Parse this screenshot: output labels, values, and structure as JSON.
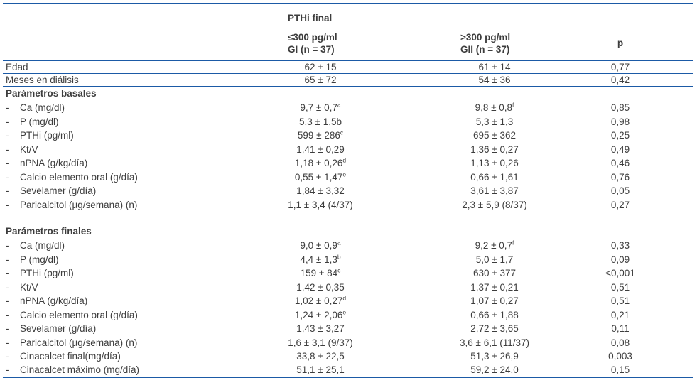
{
  "colors": {
    "rule_blue": "#1b5aa6",
    "text": "#3d3d3d"
  },
  "table": {
    "top_header": "PTHi final",
    "columns": {
      "group1": {
        "line1": "≤300 pg/ml",
        "line2": "GI (n = 37)"
      },
      "group2": {
        "line1": ">300 pg/ml",
        "line2": "GII (n = 37)"
      },
      "p_label": "p"
    },
    "rows": [
      {
        "label": "Edad",
        "top": true,
        "border": "thin",
        "gi": "62 ± 15",
        "gii": "61 ± 14",
        "p": "0,77"
      },
      {
        "label": "Meses en diálisis",
        "top": true,
        "border": "thin",
        "gi": "65 ± 72",
        "gii": "54 ± 36",
        "p": "0,42"
      },
      {
        "label": "Parámetros basales",
        "section": true
      },
      {
        "label": "Ca (mg/dl)",
        "dash": true,
        "gi": "9,7 ± 0,7",
        "gi_sup": "a",
        "gii": "9,8 ± 0,8",
        "gii_sup": "f",
        "p": "0,85"
      },
      {
        "label": "P (mg/dl)",
        "dash": true,
        "gi": "5,3 ± 1,5b",
        "gii": "5,3 ± 1,3",
        "p": "0,98"
      },
      {
        "label": "PTHi (pg/ml)",
        "dash": true,
        "gi": "599 ± 286",
        "gi_sup": "c",
        "gii": "695 ± 362",
        "p": "0,25"
      },
      {
        "label": "Kt/V",
        "dash": true,
        "gi": "1,41 ± 0,29",
        "gii": "1,36 ± 0,27",
        "p": "0,49"
      },
      {
        "label": "nPNA (g/kg/día)",
        "dash": true,
        "gi": "1,18 ± 0,26",
        "gi_sup": "d",
        "gii": "1,13 ± 0,26",
        "p": "0,46"
      },
      {
        "label": "Calcio elemento oral (g/día)",
        "dash": true,
        "gi": "0,55 ± 1,47",
        "gi_sup": "e",
        "gii": "0,66 ± 1,61",
        "p": "0,76"
      },
      {
        "label": "Sevelamer (g/día)",
        "dash": true,
        "gi": "1,84 ± 3,32",
        "gii": "3,61 ± 3,87",
        "p": "0,05"
      },
      {
        "label": "Paricalcitol (µg/semana) (n)",
        "dash": true,
        "border": "thin",
        "gi": "1,1 ± 3,4 (4/37)",
        "gii": "2,3 ± 5,9 (8/37)",
        "p": "0,27"
      },
      {
        "spacer": true
      },
      {
        "label": "Parámetros finales",
        "section": true
      },
      {
        "label": "Ca (mg/dl)",
        "dash": true,
        "gi": "9,0 ± 0,9",
        "gi_sup": "a",
        "gii": "9,2 ± 0,7",
        "gii_sup": "f",
        "p": "0,33"
      },
      {
        "label": "P (mg/dl)",
        "dash": true,
        "gi": "4,4 ± 1,3",
        "gi_sup": "b",
        "gii": "5,0 ± 1,7",
        "p": "0,09"
      },
      {
        "label": "PTHi (pg/ml)",
        "dash": true,
        "gi": "159 ± 84",
        "gi_sup": "c",
        "gii": "630 ± 377",
        "p": "<0,001"
      },
      {
        "label": "Kt/V",
        "dash": true,
        "gi": "1,42 ± 0,35",
        "gii": "1,37 ± 0,21",
        "p": "0,51"
      },
      {
        "label": "nPNA (g/kg/día)",
        "dash": true,
        "gi": "1,02 ± 0,27",
        "gi_sup": "d",
        "gii": "1,07 ± 0,27",
        "p": "0,51"
      },
      {
        "label": "Calcio elemento oral (g/día)",
        "dash": true,
        "gi": "1,24 ± 2,06",
        "gi_sup": "e",
        "gii": "0,66 ± 1,88",
        "p": "0,21"
      },
      {
        "label": "Sevelamer (g/día)",
        "dash": true,
        "gi": "1,43 ± 3,27",
        "gii": "2,72 ± 3,65",
        "p": "0,11"
      },
      {
        "label": "Paricalcitol (µg/semana) (n)",
        "dash": true,
        "gi": "1,6 ± 3,1 (9/37)",
        "gii": "3,6 ± 6,1 (11/37)",
        "p": "0,08"
      },
      {
        "label": "Cinacalcet final(mg/día)",
        "dash": true,
        "gi": "33,8 ± 22,5",
        "gii": "51,3 ± 26,9",
        "p": "0,003"
      },
      {
        "label": "Cinacalcet máximo (mg/día)",
        "dash": true,
        "border": "thick",
        "gi": "51,1 ± 25,1",
        "gii": "59,2 ± 24,0",
        "p": "0,15"
      }
    ]
  }
}
